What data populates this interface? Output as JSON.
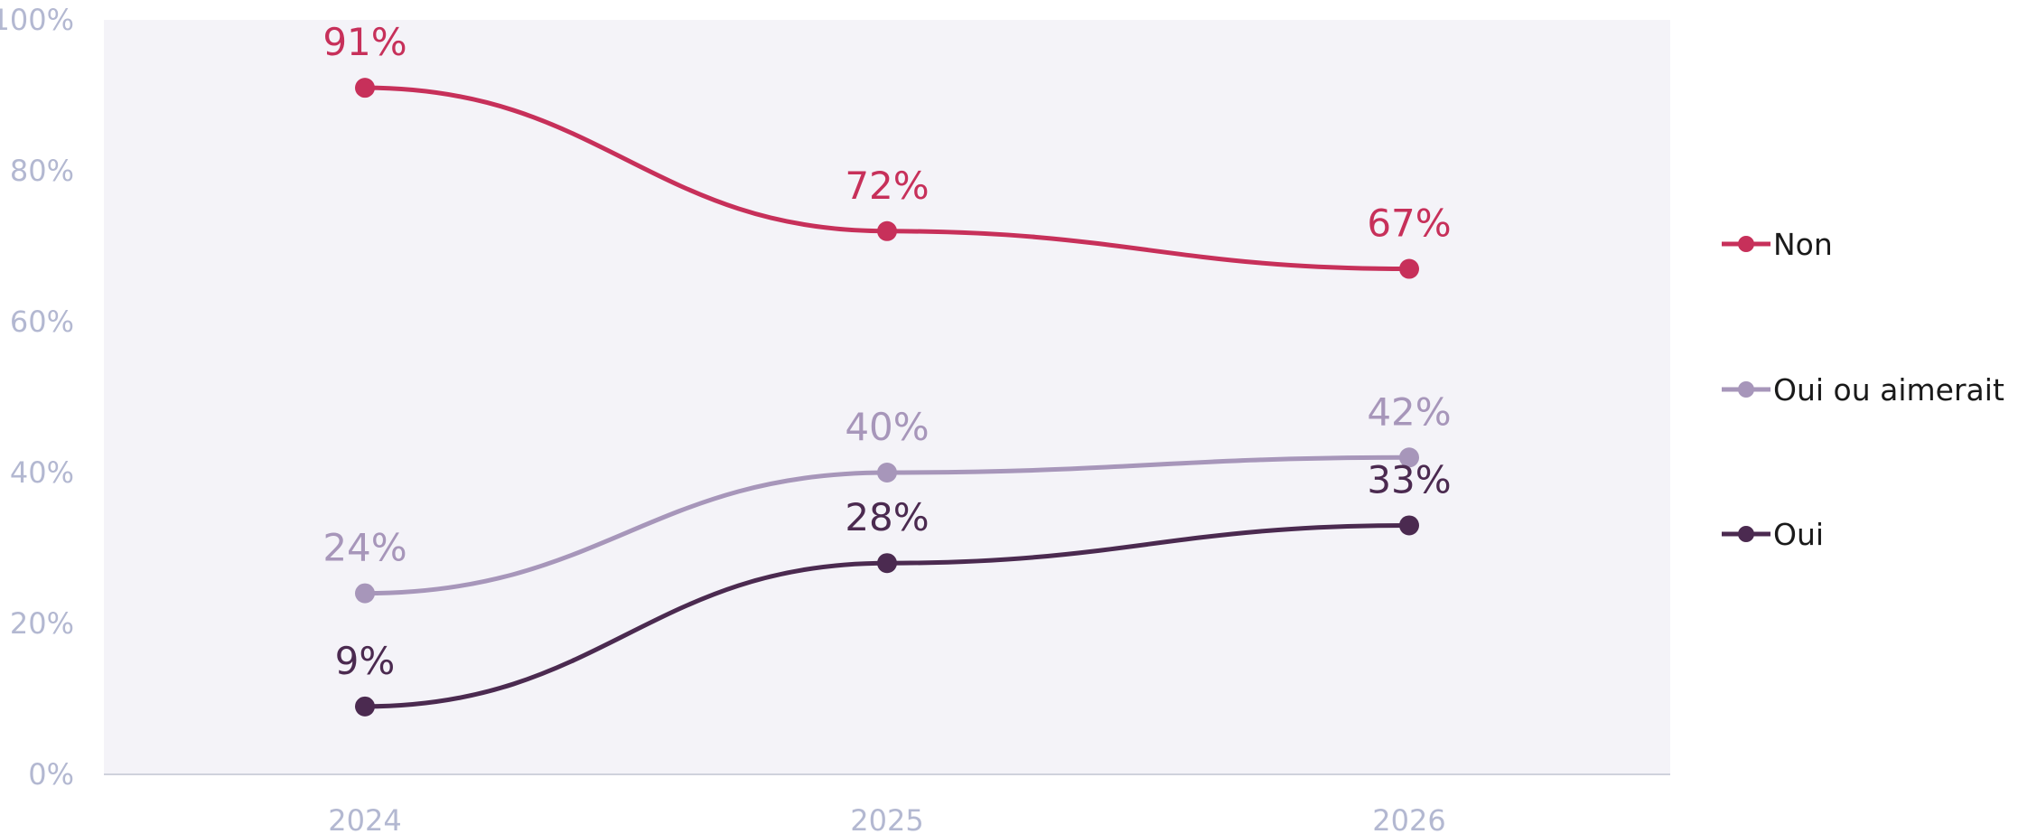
{
  "chart_data": {
    "type": "line",
    "x": [
      "2024",
      "2025",
      "2026"
    ],
    "y_ticks": [
      "0%",
      "20%",
      "40%",
      "60%",
      "80%",
      "100%"
    ],
    "ylim": [
      0,
      100
    ],
    "grid": false,
    "legend_position": "right",
    "plot_background": "#f4f3f8",
    "series": [
      {
        "name": "Non",
        "color": "#c7305a",
        "values": [
          91,
          72,
          67
        ],
        "labels": [
          "91%",
          "72%",
          "67%"
        ]
      },
      {
        "name": "Oui ou aimerait",
        "color": "#a796ba",
        "values": [
          24,
          40,
          42
        ],
        "labels": [
          "24%",
          "40%",
          "42%"
        ]
      },
      {
        "name": "Oui",
        "color": "#4b2a50",
        "values": [
          9,
          28,
          33
        ],
        "labels": [
          "9%",
          "28%",
          "33%"
        ]
      }
    ]
  }
}
